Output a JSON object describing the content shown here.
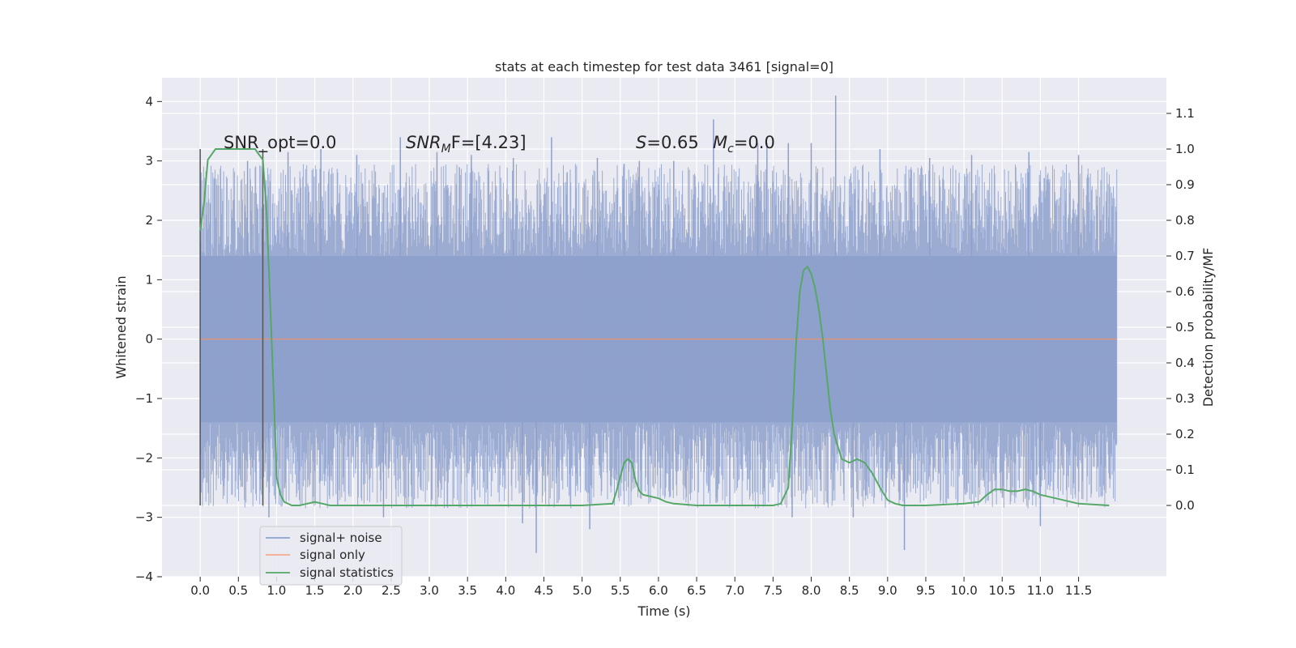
{
  "chart_data": {
    "type": "line",
    "title": "stats at each timestep for test data 3461 [signal=0]",
    "xlabel": "Time (s)",
    "ylabel": "Whitened strain",
    "ylabel_right": "Detection probability/MF",
    "xlim": [
      -0.5,
      12.65
    ],
    "ylim": [
      -4.0,
      4.4
    ],
    "ylim_right": [
      -0.2,
      1.2
    ],
    "x_ticks": [
      0.0,
      0.5,
      1.0,
      1.5,
      2.0,
      2.5,
      3.0,
      3.5,
      4.0,
      4.5,
      5.0,
      5.5,
      6.0,
      6.5,
      7.0,
      7.5,
      8.0,
      8.5,
      9.0,
      9.5,
      10.0,
      10.5,
      11.0,
      11.5
    ],
    "x_tick_labels": [
      "0.0",
      "0.5",
      "1.0",
      "1.5",
      "2.0",
      "2.5",
      "3.0",
      "3.5",
      "4.0",
      "4.5",
      "5.0",
      "5.5",
      "6.0",
      "6.5",
      "7.0",
      "7.5",
      "8.0",
      "8.5",
      "9.0",
      "9.5",
      "10.0",
      "10.5",
      "11.0",
      "11.5"
    ],
    "y_ticks": [
      -4,
      -3,
      -2,
      -1,
      0,
      1,
      2,
      3,
      4
    ],
    "y_tick_labels": [
      "−4",
      "−3",
      "−2",
      "−1",
      "0",
      "1",
      "2",
      "3",
      "4"
    ],
    "y_ticks_right": [
      0.0,
      0.1,
      0.2,
      0.3,
      0.4,
      0.5,
      0.6,
      0.7,
      0.8,
      0.9,
      1.0,
      1.1
    ],
    "y_tick_labels_right": [
      "0.0",
      "0.1",
      "0.2",
      "0.3",
      "0.4",
      "0.5",
      "0.6",
      "0.7",
      "0.8",
      "0.9",
      "1.0",
      "1.1"
    ],
    "grid": true,
    "legend_position": "lower-left",
    "annotations": {
      "snr_opt": "SNR_opt=0.0",
      "snr_mf_base": "SNR",
      "snr_mf_sub": "M",
      "snr_mf_rest": "F=[4.23]",
      "s_var": "S",
      "s_val": "=0.65",
      "mc_base": "M",
      "mc_sub": "c",
      "mc_val": "=0.0"
    },
    "window_markers": [
      0.0,
      0.82
    ],
    "series": [
      {
        "name": "signal+ noise",
        "color": "#8da0cb",
        "axis": "left",
        "x_range": [
          0.0,
          12.0
        ],
        "core_band": [
          -1.4,
          1.4
        ],
        "envelope": [
          -2.5,
          2.6
        ],
        "spikes": [
          [
            0.62,
            3.0
          ],
          [
            1.15,
            3.15
          ],
          [
            1.58,
            3.2
          ],
          [
            2.05,
            3.1
          ],
          [
            2.62,
            3.4
          ],
          [
            3.1,
            3.15
          ],
          [
            3.55,
            3.1
          ],
          [
            4.1,
            3.05
          ],
          [
            4.6,
            3.4
          ],
          [
            5.2,
            3.05
          ],
          [
            5.55,
            2.95
          ],
          [
            5.75,
            3.0
          ],
          [
            6.2,
            3.0
          ],
          [
            6.72,
            3.7
          ],
          [
            7.3,
            3.3
          ],
          [
            7.42,
            3.3
          ],
          [
            7.7,
            3.3
          ],
          [
            8.0,
            3.3
          ],
          [
            8.32,
            4.1
          ],
          [
            8.9,
            3.2
          ],
          [
            9.55,
            3.05
          ],
          [
            10.1,
            3.1
          ],
          [
            10.85,
            3.15
          ],
          [
            11.5,
            3.1
          ],
          [
            0.9,
            -3.0
          ],
          [
            1.8,
            -2.8
          ],
          [
            2.4,
            -3.0
          ],
          [
            4.22,
            -3.1
          ],
          [
            4.4,
            -3.6
          ],
          [
            5.1,
            -3.2
          ],
          [
            7.75,
            -3.0
          ],
          [
            8.55,
            -3.0
          ],
          [
            9.22,
            -3.55
          ],
          [
            11.0,
            -3.15
          ]
        ]
      },
      {
        "name": "signal only",
        "color": "#fc8d62",
        "axis": "left",
        "x": [
          0.0,
          12.0
        ],
        "y": [
          0.0,
          0.0
        ]
      },
      {
        "name": "signal statistics",
        "color": "#55a868",
        "axis": "right",
        "x": [
          0.0,
          0.05,
          0.1,
          0.2,
          0.3,
          0.5,
          0.6,
          0.72,
          0.75,
          0.82,
          0.87,
          0.92,
          0.97,
          1.0,
          1.05,
          1.1,
          1.2,
          1.3,
          1.4,
          1.5,
          1.6,
          1.7,
          1.8,
          2.0,
          2.5,
          3.0,
          3.5,
          4.0,
          4.5,
          5.0,
          5.4,
          5.45,
          5.5,
          5.55,
          5.6,
          5.65,
          5.7,
          5.75,
          5.8,
          5.9,
          6.0,
          6.1,
          6.2,
          6.5,
          7.0,
          7.5,
          7.6,
          7.7,
          7.75,
          7.8,
          7.85,
          7.9,
          7.95,
          8.0,
          8.05,
          8.1,
          8.15,
          8.2,
          8.25,
          8.3,
          8.4,
          8.5,
          8.6,
          8.7,
          8.8,
          8.9,
          9.0,
          9.1,
          9.2,
          9.5,
          10.0,
          10.2,
          10.3,
          10.4,
          10.5,
          10.6,
          10.7,
          10.8,
          10.9,
          11.0,
          11.2,
          11.5,
          11.9
        ],
        "y": [
          0.77,
          0.85,
          0.97,
          1.0,
          1.0,
          1.0,
          1.0,
          1.0,
          0.99,
          0.97,
          0.82,
          0.55,
          0.27,
          0.08,
          0.03,
          0.01,
          0.0,
          0.0,
          0.005,
          0.01,
          0.005,
          0.0,
          0.0,
          0.0,
          0.0,
          0.0,
          0.0,
          0.0,
          0.0,
          0.0,
          0.005,
          0.04,
          0.08,
          0.12,
          0.13,
          0.12,
          0.07,
          0.04,
          0.03,
          0.025,
          0.02,
          0.01,
          0.005,
          0.0,
          0.0,
          0.0,
          0.005,
          0.05,
          0.22,
          0.45,
          0.6,
          0.66,
          0.67,
          0.65,
          0.61,
          0.55,
          0.47,
          0.37,
          0.27,
          0.2,
          0.13,
          0.12,
          0.13,
          0.12,
          0.09,
          0.05,
          0.015,
          0.005,
          0.0,
          0.0,
          0.005,
          0.01,
          0.03,
          0.045,
          0.045,
          0.04,
          0.04,
          0.045,
          0.04,
          0.03,
          0.02,
          0.005,
          0.0
        ]
      }
    ]
  }
}
